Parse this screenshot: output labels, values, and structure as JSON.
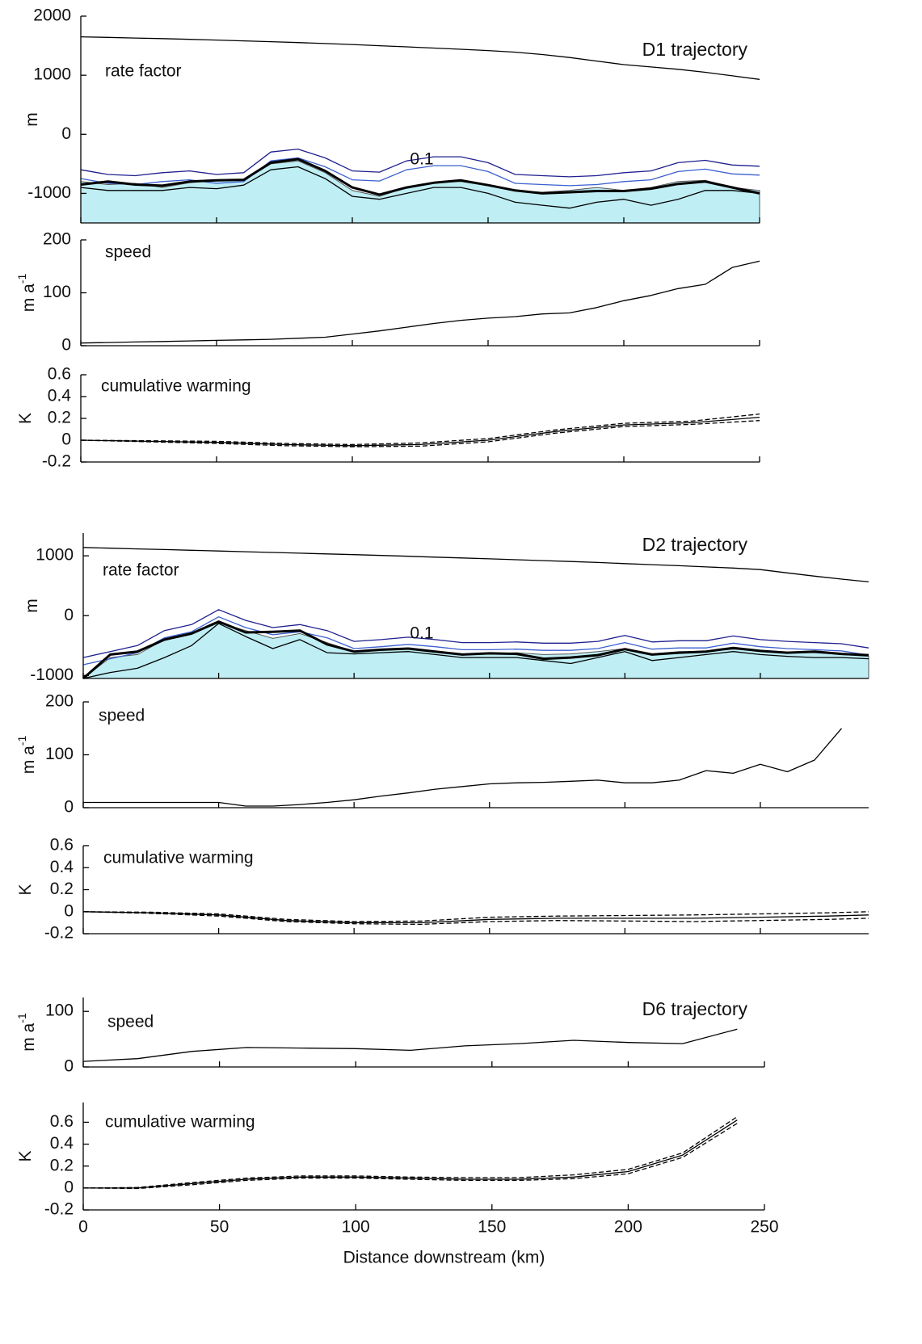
{
  "chart_data": [
    {
      "type": "line",
      "title": "D1 trajectory",
      "label": "rate factor",
      "annotation": "0.1",
      "ylabel": "m",
      "xlim": [
        0,
        250
      ],
      "ylim": [
        -1500,
        2000
      ],
      "yticks": [
        -1000,
        0,
        1000,
        2000
      ],
      "xticks": [
        0,
        50,
        100,
        150,
        200,
        250
      ],
      "xtick_labels": false,
      "x": [
        0,
        10,
        20,
        30,
        40,
        50,
        60,
        70,
        80,
        90,
        100,
        110,
        120,
        130,
        140,
        150,
        160,
        170,
        180,
        190,
        200,
        210,
        220,
        230,
        240,
        250
      ],
      "series": [
        {
          "color": "#bfeef4",
          "fill": true,
          "values": [
            -800,
            -850,
            -830,
            -900,
            -820,
            -780,
            -780,
            -500,
            -450,
            -650,
            -950,
            -1050,
            -900,
            -820,
            -800,
            -870,
            -960,
            -980,
            -950,
            -900,
            -950,
            -900,
            -800,
            -780,
            -900,
            -950
          ]
        },
        {
          "color": "#000000",
          "values": [
            1650,
            1640,
            1630,
            1620,
            1608,
            1595,
            1582,
            1568,
            1553,
            1537,
            1520,
            1500,
            1480,
            1460,
            1440,
            1418,
            1390,
            1350,
            1300,
            1240,
            1180,
            1140,
            1100,
            1050,
            990,
            930
          ]
        },
        {
          "color": "#1f1f8f",
          "values": [
            -600,
            -680,
            -700,
            -650,
            -620,
            -680,
            -650,
            -300,
            -250,
            -400,
            -620,
            -640,
            -450,
            -380,
            -380,
            -480,
            -680,
            -700,
            -720,
            -700,
            -650,
            -620,
            -480,
            -440,
            -520,
            -540
          ]
        },
        {
          "color": "#3a5fd0",
          "values": [
            -750,
            -830,
            -850,
            -800,
            -770,
            -830,
            -800,
            -450,
            -400,
            -550,
            -770,
            -790,
            -600,
            -530,
            -530,
            -630,
            -830,
            -850,
            -870,
            -850,
            -800,
            -770,
            -630,
            -590,
            -670,
            -690
          ]
        },
        {
          "color": "#000000",
          "values": [
            -900,
            -950,
            -950,
            -950,
            -900,
            -920,
            -860,
            -600,
            -550,
            -750,
            -1050,
            -1100,
            -1000,
            -900,
            -900,
            -1000,
            -1150,
            -1200,
            -1250,
            -1150,
            -1100,
            -1200,
            -1100,
            -950,
            -950,
            -1000
          ]
        },
        {
          "color": "#000000",
          "width": 3,
          "values": [
            -850,
            -800,
            -850,
            -870,
            -800,
            -780,
            -770,
            -480,
            -420,
            -620,
            -900,
            -1020,
            -900,
            -820,
            -780,
            -860,
            -950,
            -1000,
            -980,
            -960,
            -960,
            -920,
            -840,
            -800,
            -900,
            -1000
          ]
        }
      ]
    },
    {
      "type": "line",
      "label": "speed",
      "ylabel": "m a",
      "ylabel_sup": "-1",
      "xlim": [
        0,
        250
      ],
      "ylim": [
        0,
        200
      ],
      "yticks": [
        0,
        100,
        200
      ],
      "xticks": [
        0,
        50,
        100,
        150,
        200,
        250
      ],
      "xtick_labels": false,
      "x": [
        0,
        10,
        20,
        30,
        40,
        50,
        60,
        70,
        80,
        90,
        100,
        110,
        120,
        130,
        140,
        150,
        160,
        170,
        180,
        190,
        200,
        210,
        220,
        230,
        240,
        250
      ],
      "series": [
        {
          "color": "#000000",
          "values": [
            5,
            6,
            7,
            8,
            9,
            10,
            11,
            12,
            14,
            16,
            22,
            28,
            35,
            42,
            48,
            52,
            55,
            60,
            62,
            72,
            85,
            95,
            108,
            116,
            148,
            160
          ]
        }
      ]
    },
    {
      "type": "line",
      "label": "cumulative warming",
      "ylabel": "K",
      "xlim": [
        0,
        250
      ],
      "ylim": [
        -0.2,
        0.6
      ],
      "yticks": [
        -0.2,
        0,
        0.2,
        0.4,
        0.6
      ],
      "xticks": [
        0,
        50,
        100,
        150,
        200,
        250
      ],
      "xtick_labels": false,
      "x": [
        0,
        25,
        50,
        75,
        100,
        125,
        150,
        175,
        200,
        225,
        250
      ],
      "series": [
        {
          "color": "#000000",
          "values": [
            0,
            -0.01,
            -0.02,
            -0.04,
            -0.05,
            -0.04,
            0,
            0.08,
            0.14,
            0.16,
            0.21
          ]
        },
        {
          "color": "#000000",
          "dashed": true,
          "values": [
            0,
            -0.005,
            -0.01,
            -0.03,
            -0.04,
            -0.025,
            0.015,
            0.095,
            0.155,
            0.175,
            0.24
          ]
        },
        {
          "color": "#000000",
          "dashed": true,
          "values": [
            0,
            -0.015,
            -0.03,
            -0.05,
            -0.06,
            -0.055,
            -0.015,
            0.065,
            0.125,
            0.145,
            0.18
          ]
        }
      ]
    },
    {
      "type": "line",
      "title": "D2 trajectory",
      "label": "rate factor",
      "annotation": "0.1",
      "ylabel": "m",
      "xlim": [
        0,
        290
      ],
      "ylim": [
        -1050,
        1380
      ],
      "yticks": [
        -1000,
        0,
        1000
      ],
      "xticks": [
        0,
        50,
        100,
        150,
        200,
        250
      ],
      "xtick_labels": false,
      "x": [
        0,
        10,
        20,
        30,
        40,
        50,
        60,
        70,
        80,
        90,
        100,
        110,
        120,
        130,
        140,
        150,
        160,
        170,
        180,
        190,
        200,
        210,
        220,
        230,
        240,
        250,
        260,
        270,
        280,
        290
      ],
      "series": [
        {
          "color": "#bfeef4",
          "fill": true,
          "values": [
            -1050,
            -700,
            -650,
            -400,
            -300,
            -120,
            -250,
            -380,
            -300,
            -450,
            -600,
            -580,
            -560,
            -600,
            -650,
            -640,
            -620,
            -650,
            -640,
            -600,
            -550,
            -640,
            -600,
            -600,
            -560,
            -580,
            -620,
            -620,
            -650,
            -680
          ]
        },
        {
          "color": "#000000",
          "values": [
            1140,
            1128,
            1116,
            1104,
            1092,
            1080,
            1068,
            1056,
            1044,
            1032,
            1020,
            1006,
            992,
            978,
            964,
            950,
            935,
            920,
            905,
            888,
            870,
            852,
            834,
            815,
            795,
            770,
            715,
            660,
            610,
            565
          ]
        },
        {
          "color": "#1f1f8f",
          "values": [
            -700,
            -600,
            -500,
            -250,
            -150,
            100,
            -80,
            -200,
            -150,
            -250,
            -430,
            -400,
            -360,
            -400,
            -450,
            -450,
            -440,
            -460,
            -460,
            -430,
            -330,
            -440,
            -420,
            -420,
            -340,
            -400,
            -430,
            -450,
            -470,
            -540
          ]
        },
        {
          "color": "#3a5fd0",
          "values": [
            -820,
            -720,
            -620,
            -370,
            -270,
            -20,
            -200,
            -320,
            -270,
            -370,
            -550,
            -520,
            -480,
            -520,
            -570,
            -570,
            -560,
            -580,
            -580,
            -550,
            -450,
            -560,
            -540,
            -540,
            -460,
            -520,
            -550,
            -570,
            -590,
            -660
          ]
        },
        {
          "color": "#000000",
          "values": [
            -1050,
            -950,
            -880,
            -700,
            -500,
            -130,
            -350,
            -550,
            -400,
            -620,
            -640,
            -620,
            -600,
            -650,
            -700,
            -700,
            -700,
            -750,
            -800,
            -700,
            -600,
            -750,
            -700,
            -650,
            -600,
            -650,
            -680,
            -700,
            -700,
            -720
          ]
        },
        {
          "color": "#000000",
          "width": 3,
          "values": [
            -1050,
            -650,
            -600,
            -400,
            -300,
            -100,
            -280,
            -270,
            -250,
            -480,
            -600,
            -570,
            -550,
            -600,
            -650,
            -630,
            -640,
            -720,
            -700,
            -660,
            -560,
            -650,
            -620,
            -600,
            -540,
            -590,
            -620,
            -600,
            -640,
            -660
          ]
        }
      ]
    },
    {
      "type": "line",
      "label": "speed",
      "ylabel": "m a",
      "ylabel_sup": "-1",
      "xlim": [
        0,
        290
      ],
      "ylim": [
        0,
        200
      ],
      "yticks": [
        0,
        100,
        200
      ],
      "xticks": [
        0,
        50,
        100,
        150,
        200,
        250
      ],
      "xtick_labels": false,
      "x": [
        0,
        10,
        20,
        30,
        40,
        50,
        60,
        70,
        80,
        90,
        100,
        110,
        120,
        130,
        140,
        150,
        160,
        170,
        180,
        190,
        200,
        210,
        220,
        230,
        240,
        250,
        260,
        270,
        280
      ],
      "series": [
        {
          "color": "#000000",
          "values": [
            10,
            10,
            10,
            10,
            10,
            10,
            3,
            3,
            6,
            10,
            15,
            22,
            28,
            35,
            40,
            45,
            47,
            48,
            50,
            52,
            47,
            47,
            52,
            70,
            65,
            82,
            68,
            90,
            150
          ]
        }
      ]
    },
    {
      "type": "line",
      "label": "cumulative warming",
      "ylabel": "K",
      "xlim": [
        0,
        290
      ],
      "ylim": [
        -0.2,
        0.6
      ],
      "yticks": [
        -0.2,
        0,
        0.2,
        0.4,
        0.6
      ],
      "xticks": [
        0,
        50,
        100,
        150,
        200,
        250
      ],
      "xtick_labels": false,
      "x": [
        0,
        25,
        50,
        75,
        100,
        125,
        150,
        175,
        200,
        225,
        250,
        275,
        290
      ],
      "series": [
        {
          "color": "#000000",
          "values": [
            0,
            -0.01,
            -0.03,
            -0.08,
            -0.1,
            -0.1,
            -0.07,
            -0.06,
            -0.06,
            -0.06,
            -0.05,
            -0.04,
            -0.03
          ]
        },
        {
          "color": "#000000",
          "dashed": true,
          "values": [
            0,
            -0.005,
            -0.02,
            -0.07,
            -0.09,
            -0.085,
            -0.05,
            -0.04,
            -0.035,
            -0.03,
            -0.02,
            -0.01,
            0
          ]
        },
        {
          "color": "#000000",
          "dashed": true,
          "values": [
            0,
            -0.015,
            -0.04,
            -0.09,
            -0.11,
            -0.115,
            -0.09,
            -0.08,
            -0.085,
            -0.09,
            -0.08,
            -0.07,
            -0.06
          ]
        }
      ]
    },
    {
      "type": "line",
      "title": "D6 trajectory",
      "label": "speed",
      "ylabel": "m a",
      "ylabel_sup": "-1",
      "xlim": [
        0,
        250
      ],
      "ylim": [
        0,
        125
      ],
      "yticks": [
        0,
        100
      ],
      "xticks": [
        0,
        50,
        100,
        150,
        200,
        250
      ],
      "xtick_labels": false,
      "x": [
        0,
        20,
        40,
        60,
        80,
        100,
        120,
        140,
        160,
        180,
        200,
        220,
        240
      ],
      "series": [
        {
          "color": "#000000",
          "values": [
            10,
            15,
            28,
            35,
            34,
            33,
            30,
            38,
            42,
            48,
            44,
            42,
            68
          ]
        }
      ]
    },
    {
      "type": "line",
      "label": "cumulative warming",
      "ylabel": "K",
      "xlabel": "Distance downstream (km)",
      "xlim": [
        0,
        250
      ],
      "ylim": [
        -0.2,
        0.78
      ],
      "yticks": [
        -0.2,
        0,
        0.2,
        0.4,
        0.6
      ],
      "xticks": [
        0,
        50,
        100,
        150,
        200,
        250
      ],
      "xtick_labels": true,
      "x": [
        0,
        20,
        40,
        60,
        80,
        100,
        120,
        140,
        160,
        180,
        200,
        220,
        240
      ],
      "series": [
        {
          "color": "#000000",
          "values": [
            0,
            0,
            0.04,
            0.08,
            0.1,
            0.1,
            0.09,
            0.08,
            0.08,
            0.1,
            0.15,
            0.3,
            0.62
          ]
        },
        {
          "color": "#000000",
          "dashed": true,
          "values": [
            0,
            0.005,
            0.05,
            0.09,
            0.11,
            0.11,
            0.1,
            0.095,
            0.095,
            0.12,
            0.17,
            0.32,
            0.65
          ]
        },
        {
          "color": "#000000",
          "dashed": true,
          "values": [
            0,
            -0.005,
            0.03,
            0.07,
            0.09,
            0.09,
            0.08,
            0.07,
            0.07,
            0.085,
            0.13,
            0.28,
            0.59
          ]
        }
      ]
    }
  ]
}
